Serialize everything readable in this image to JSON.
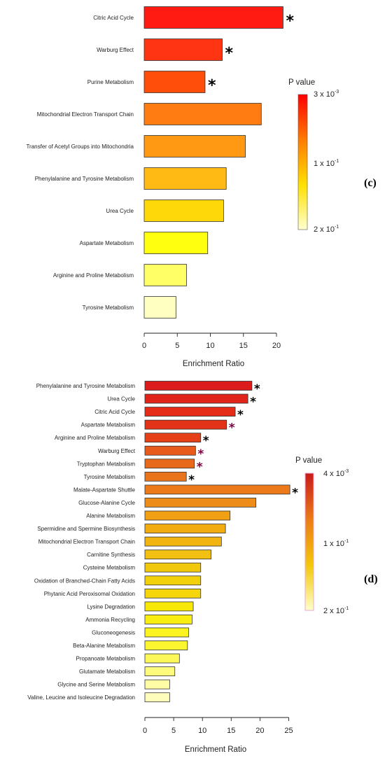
{
  "chart_data": [
    {
      "type": "bar",
      "orientation": "horizontal",
      "panel_tag": "(c)",
      "xlabel": "Enrichment Ratio",
      "xlim": [
        0,
        21
      ],
      "xticks": [
        "0",
        "5",
        "10",
        "15",
        "20"
      ],
      "categories": [
        "Citric Acid Cycle",
        "Warburg Effect",
        "Purine Metabolism",
        "Mitochondrial Electron Transport Chain",
        "Transfer of Acetyl Groups into Mitochondria",
        "Phenylalanine and Tyrosine Metabolism",
        "Urea Cycle",
        "Aspartate Metabolism",
        "Arginine and Proline Metabolism",
        "Tyrosine Metabolism"
      ],
      "values": [
        21.0,
        11.8,
        9.2,
        17.7,
        15.3,
        12.4,
        12.0,
        9.6,
        6.4,
        4.8
      ],
      "significant": [
        true,
        true,
        true,
        false,
        false,
        false,
        false,
        false,
        false,
        false
      ],
      "bar_colors": [
        "#ff1a12",
        "#ff3412",
        "#ff4e0a",
        "#ff7c12",
        "#ff9812",
        "#ffba14",
        "#ffd80a",
        "#ffff10",
        "#ffff66",
        "#ffffc2"
      ],
      "significance_marker": "*",
      "legend": {
        "title": "P value",
        "tick_top": "3 x 10",
        "tick_top_exp": "-3",
        "tick_mid": "1 x 10",
        "tick_mid_exp": "-1",
        "tick_bottom": "2 x 10",
        "tick_bottom_exp": "-1",
        "colors": [
          "#ff0000",
          "#ff7a00",
          "#ffe000",
          "#ffffd0"
        ]
      }
    },
    {
      "type": "bar",
      "orientation": "horizontal",
      "panel_tag": "(d)",
      "xlabel": "Enrichment Ratio",
      "xlim": [
        0,
        25.5
      ],
      "xticks": [
        "0",
        "5",
        "10",
        "15",
        "20",
        "25"
      ],
      "categories": [
        "Phenylalanine and Tyrosine Metabolism",
        "Urea Cycle",
        "Citric Acid Cycle",
        "Aspartate Metabolism",
        "Arginine and Proline Metabolism",
        "Warburg Effect",
        "Tryptophan Metabolism",
        "Tyrosine Metabolism",
        "Malate-Aspartate Shuttle",
        "Glucose-Alanine Cycle",
        "Alanine Metabolism",
        "Spermidine and Spermine Biosynthesis",
        "Mitochondrial Electron Transport Chain",
        "Carnitine Synthesis",
        "Cysteine Metabolism",
        "Oxidation of Branched-Chain Fatty Acids",
        "Phytanic Acid Peroxisomal Oxidation",
        "Lysine Degradation",
        "Ammonia Recycling",
        "Gluconeogenesis",
        "Beta-Alanine Metabolism",
        "Propanoate Metabolism",
        "Glutamate Metabolism",
        "Glycine and Serine Metabolism",
        "Valine, Leucine and Isoleucine Degradation"
      ],
      "values": [
        18.6,
        17.9,
        15.7,
        14.2,
        9.7,
        8.8,
        8.6,
        7.2,
        25.2,
        19.3,
        14.8,
        14.0,
        13.3,
        11.5,
        9.7,
        9.7,
        9.7,
        8.4,
        8.2,
        7.6,
        7.4,
        6.0,
        5.2,
        4.3,
        4.3
      ],
      "significant": [
        true,
        true,
        true,
        true,
        true,
        true,
        true,
        true,
        true,
        false,
        false,
        false,
        false,
        false,
        false,
        false,
        false,
        false,
        false,
        false,
        false,
        false,
        false,
        false,
        false
      ],
      "star_colors": [
        "#000000",
        "#000000",
        "#000000",
        "#800040",
        "#000000",
        "#800040",
        "#800040",
        "#000000",
        "#000000"
      ],
      "bar_colors": [
        "#dc1c1c",
        "#e0241a",
        "#e42c18",
        "#e23218",
        "#e64018",
        "#e85a1c",
        "#e8681c",
        "#e8741c",
        "#ec7a1a",
        "#ee8c1a",
        "#f0a012",
        "#f2ac10",
        "#f2b410",
        "#f2c010",
        "#f2c80c",
        "#f2d00a",
        "#f4d60a",
        "#f8e808",
        "#f8ee10",
        "#fbf420",
        "#fcf630",
        "#fdf85a",
        "#fdfa7c",
        "#fefca4",
        "#fefdbc"
      ],
      "significance_marker": "*",
      "legend": {
        "title": "P value",
        "tick_top": "4 x 10",
        "tick_top_exp": "-3",
        "tick_mid": "1 x 10",
        "tick_mid_exp": "-1",
        "tick_bottom": "2 x 10",
        "tick_bottom_exp": "-1",
        "colors": [
          "#c81a1a",
          "#ea7a18",
          "#f2c80c",
          "#ffffc8"
        ]
      }
    }
  ]
}
